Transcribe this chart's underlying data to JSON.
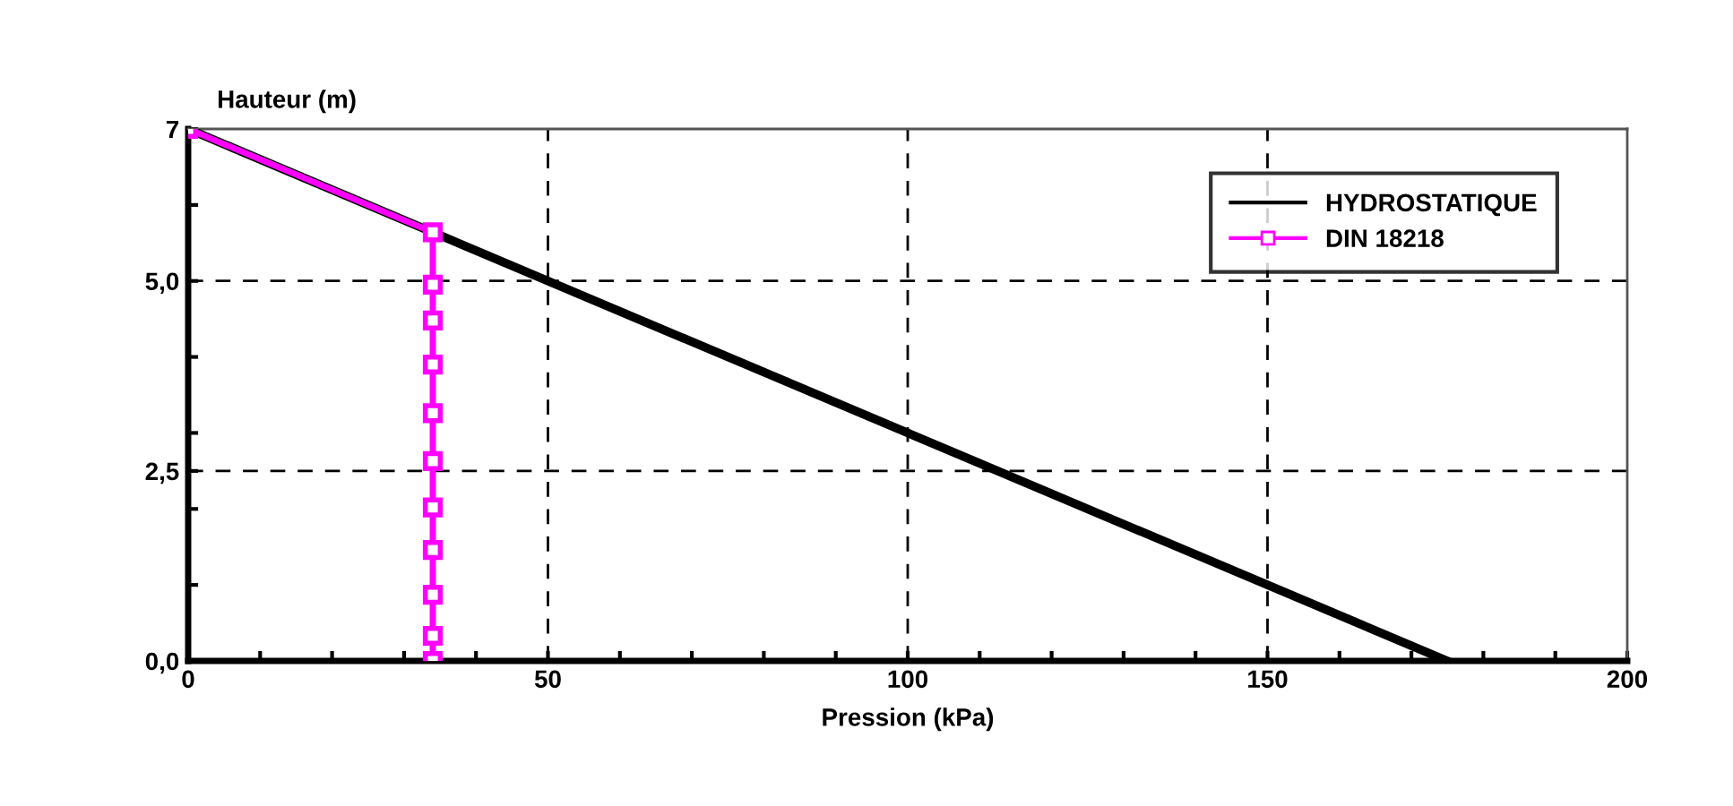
{
  "chart_data": {
    "type": "line",
    "ylabel": "Hauteur (m)",
    "xlabel": "Pression (kPa)",
    "series": [
      {
        "name": "HYDROSTATIQUE",
        "color": "#000000",
        "x": [
          0,
          35,
          175
        ],
        "values": [
          7,
          5.6,
          0
        ],
        "marker": "none"
      },
      {
        "name": "DIN 18218",
        "color": "#ff00ff",
        "x": [
          0,
          34,
          34,
          34,
          34,
          34,
          34,
          34,
          34,
          34,
          34,
          34
        ],
        "values": [
          7,
          5.64,
          4.95,
          4.48,
          3.9,
          3.26,
          2.63,
          2.02,
          1.46,
          0.87,
          0.33,
          0
        ],
        "marker": "square"
      }
    ],
    "xlim": [
      0,
      200
    ],
    "ylim": [
      0,
      7
    ],
    "xticks": [
      0,
      {
        "value": 10,
        "label": null
      },
      {
        "value": 20,
        "label": null
      },
      {
        "value": 30,
        "label": null
      },
      {
        "value": 40,
        "label": null
      },
      50,
      {
        "value": 60,
        "label": null
      },
      {
        "value": 70,
        "label": null
      },
      {
        "value": 80,
        "label": null
      },
      {
        "value": 90,
        "label": null
      },
      100,
      {
        "value": 110,
        "label": null
      },
      {
        "value": 120,
        "label": null
      },
      {
        "value": 130,
        "label": null
      },
      {
        "value": 140,
        "label": null
      },
      150,
      {
        "value": 160,
        "label": null
      },
      {
        "value": 170,
        "label": null
      },
      {
        "value": 180,
        "label": null
      },
      {
        "value": 190,
        "label": null
      },
      200
    ],
    "yticks": [
      {
        "value": 0,
        "label": "0,0"
      },
      {
        "value": 1,
        "label": null
      },
      {
        "value": 2,
        "label": null
      },
      {
        "value": 2.5,
        "label": "2,5"
      },
      {
        "value": 3,
        "label": null
      },
      {
        "value": 4,
        "label": null
      },
      {
        "value": 5,
        "label": "5,0"
      },
      {
        "value": 6,
        "label": null
      },
      7
    ],
    "grid": true,
    "legend": "top right",
    "line_style": "solid"
  }
}
